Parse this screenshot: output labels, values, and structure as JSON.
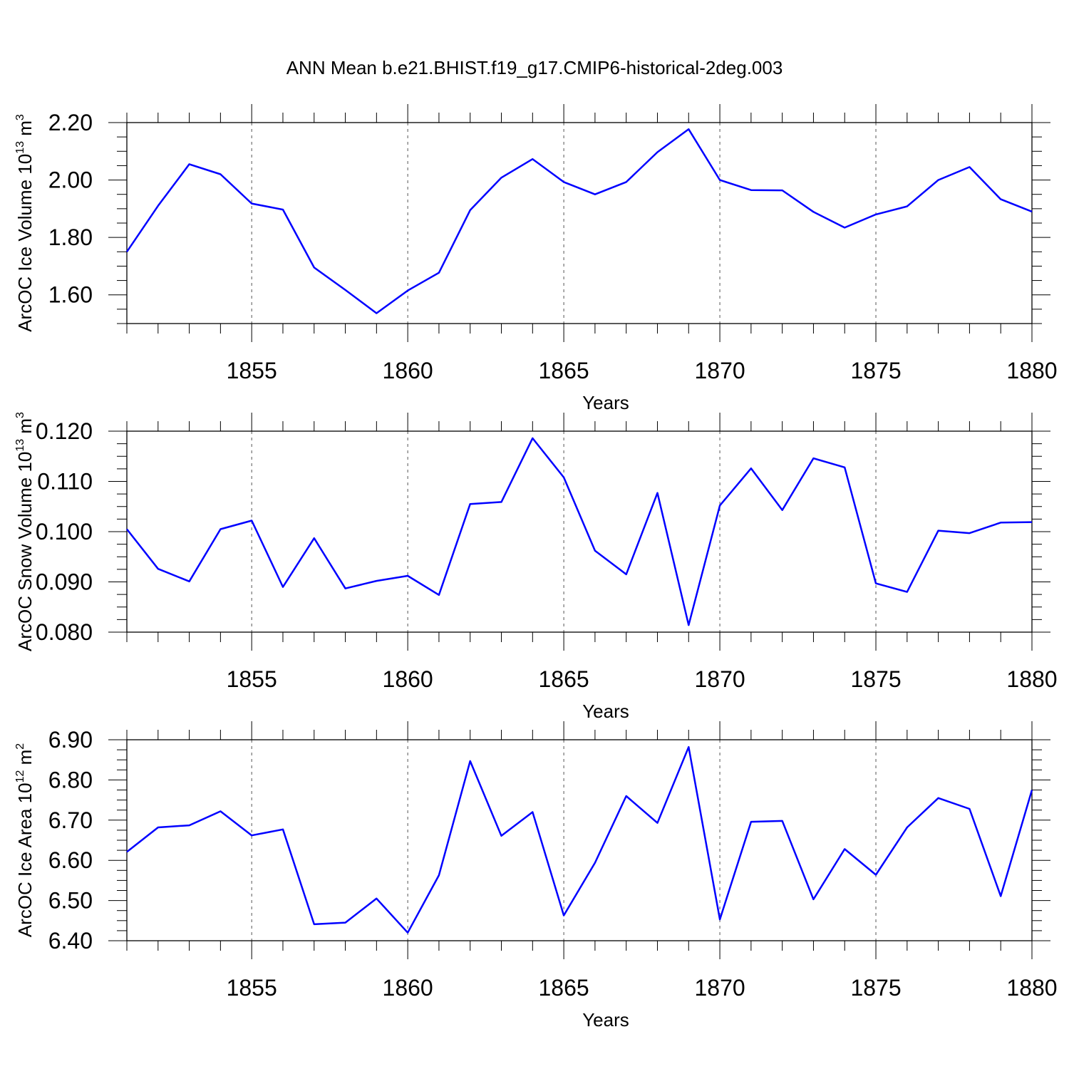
{
  "title": "ANN Mean b.e21.BHIST.f19_g17.CMIP6-historical-2deg.003",
  "colors": {
    "line": "#0000ff",
    "axis": "#000000",
    "grid": "#555555"
  },
  "chart_data": [
    {
      "type": "line",
      "xlabel": "Years",
      "ylabel": {
        "base": "ArcOC Ice Volume 10",
        "exp": "13",
        "unit": " m",
        "unit_exp": "3"
      },
      "xlim": [
        1851,
        1880
      ],
      "ylim": [
        1.5,
        2.2
      ],
      "xticks": [
        1855,
        1860,
        1865,
        1870,
        1875,
        1880
      ],
      "yticks": [
        "1.60",
        "1.80",
        "2.00",
        "2.20"
      ],
      "grid": "dashed vertical at major x ticks",
      "x": [
        1851,
        1852,
        1853,
        1854,
        1855,
        1856,
        1857,
        1858,
        1859,
        1860,
        1861,
        1862,
        1863,
        1864,
        1865,
        1866,
        1867,
        1868,
        1869,
        1870,
        1871,
        1872,
        1873,
        1874,
        1875,
        1876,
        1877,
        1878,
        1879,
        1880
      ],
      "series": [
        {
          "values": [
            1.75,
            1.91,
            2.055,
            2.02,
            1.918,
            1.897,
            1.695,
            1.617,
            1.536,
            1.615,
            1.677,
            1.895,
            2.008,
            2.073,
            1.993,
            1.95,
            1.993,
            2.097,
            2.177,
            2.0,
            1.965,
            1.964,
            1.889,
            1.834,
            1.88,
            1.908,
            2.0,
            2.045,
            1.933,
            1.89
          ]
        }
      ]
    },
    {
      "type": "line",
      "xlabel": "Years",
      "ylabel": {
        "base": "ArcOC Snow Volume 10",
        "exp": "13",
        "unit": " m",
        "unit_exp": "3"
      },
      "xlim": [
        1851,
        1880
      ],
      "ylim": [
        0.08,
        0.12
      ],
      "xticks": [
        1855,
        1860,
        1865,
        1870,
        1875,
        1880
      ],
      "yticks": [
        "0.080",
        "0.090",
        "0.100",
        "0.110",
        "0.120"
      ],
      "grid": "dashed vertical at major x ticks",
      "x": [
        1851,
        1852,
        1853,
        1854,
        1855,
        1856,
        1857,
        1858,
        1859,
        1860,
        1861,
        1862,
        1863,
        1864,
        1865,
        1866,
        1867,
        1868,
        1869,
        1870,
        1871,
        1872,
        1873,
        1874,
        1875,
        1876,
        1877,
        1878,
        1879,
        1880
      ],
      "series": [
        {
          "values": [
            0.1005,
            0.0926,
            0.0901,
            0.1005,
            0.1022,
            0.089,
            0.0987,
            0.0887,
            0.0902,
            0.0912,
            0.0874,
            0.1055,
            0.1059,
            0.1186,
            0.1108,
            0.0962,
            0.0915,
            0.1077,
            0.0814,
            0.1052,
            0.1126,
            0.1043,
            0.1146,
            0.1128,
            0.0897,
            0.088,
            0.1002,
            0.0997,
            0.1018,
            0.1019
          ]
        }
      ]
    },
    {
      "type": "line",
      "xlabel": "Years",
      "ylabel": {
        "base": "ArcOC Ice Area 10",
        "exp": "12",
        "unit": " m",
        "unit_exp": "2"
      },
      "xlim": [
        1851,
        1880
      ],
      "ylim": [
        6.4,
        6.9
      ],
      "xticks": [
        1855,
        1860,
        1865,
        1870,
        1875,
        1880
      ],
      "yticks": [
        "6.40",
        "6.50",
        "6.60",
        "6.70",
        "6.80",
        "6.90"
      ],
      "grid": "dashed vertical at major x ticks",
      "x": [
        1851,
        1852,
        1853,
        1854,
        1855,
        1856,
        1857,
        1858,
        1859,
        1860,
        1861,
        1862,
        1863,
        1864,
        1865,
        1866,
        1867,
        1868,
        1869,
        1870,
        1871,
        1872,
        1873,
        1874,
        1875,
        1876,
        1877,
        1878,
        1879,
        1880
      ],
      "series": [
        {
          "values": [
            6.621,
            6.682,
            6.687,
            6.722,
            6.662,
            6.677,
            6.441,
            6.445,
            6.505,
            6.42,
            6.563,
            6.847,
            6.661,
            6.72,
            6.463,
            6.594,
            6.76,
            6.693,
            6.882,
            6.453,
            6.696,
            6.698,
            6.503,
            6.628,
            6.564,
            6.682,
            6.755,
            6.728,
            6.511,
            6.775
          ]
        }
      ]
    }
  ]
}
